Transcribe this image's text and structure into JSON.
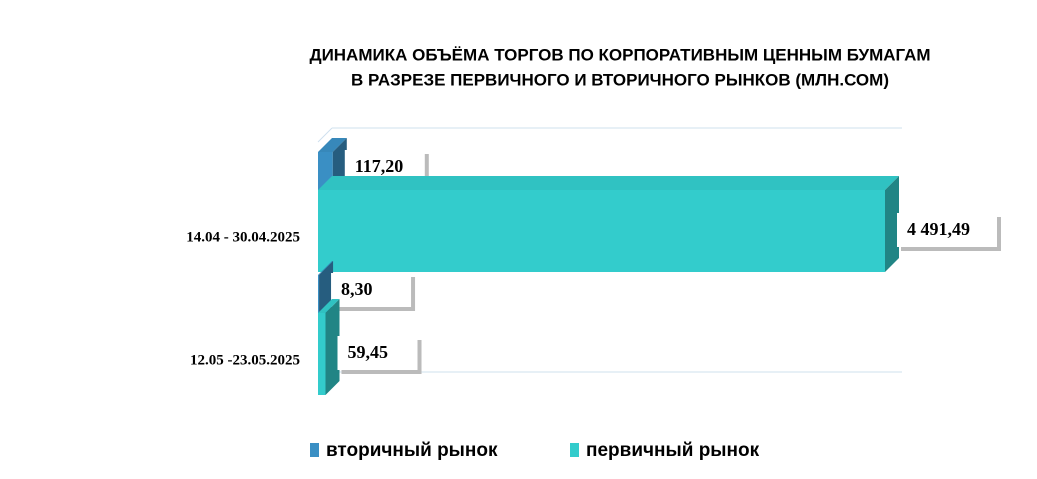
{
  "chart_data": {
    "type": "bar",
    "orientation": "horizontal",
    "title": [
      "ДИНАМИКА ОБЪЁМА ТОРГОВ ПО КОРПОРАТИВНЫМ ЦЕННЫМ БУМАГАМ",
      "В РАЗРЕЗЕ ПЕРВИЧНОГО И ВТОРИЧНОГО РЫНКОВ  (МЛН.СОМ)"
    ],
    "categories": [
      "14.04 - 30.04.2025",
      "12.05 -23.05.2025"
    ],
    "series": [
      {
        "name": "вторичный рынок",
        "color": "#3a8fc4",
        "values": [
          117.2,
          8.3
        ],
        "value_labels": [
          "117,20",
          "8,30"
        ]
      },
      {
        "name": "первичный рынок",
        "color": "#33cccc",
        "values": [
          4491.49,
          59.45
        ],
        "value_labels": [
          "4 491,49",
          "59,45"
        ]
      }
    ],
    "legend": "bottom"
  }
}
